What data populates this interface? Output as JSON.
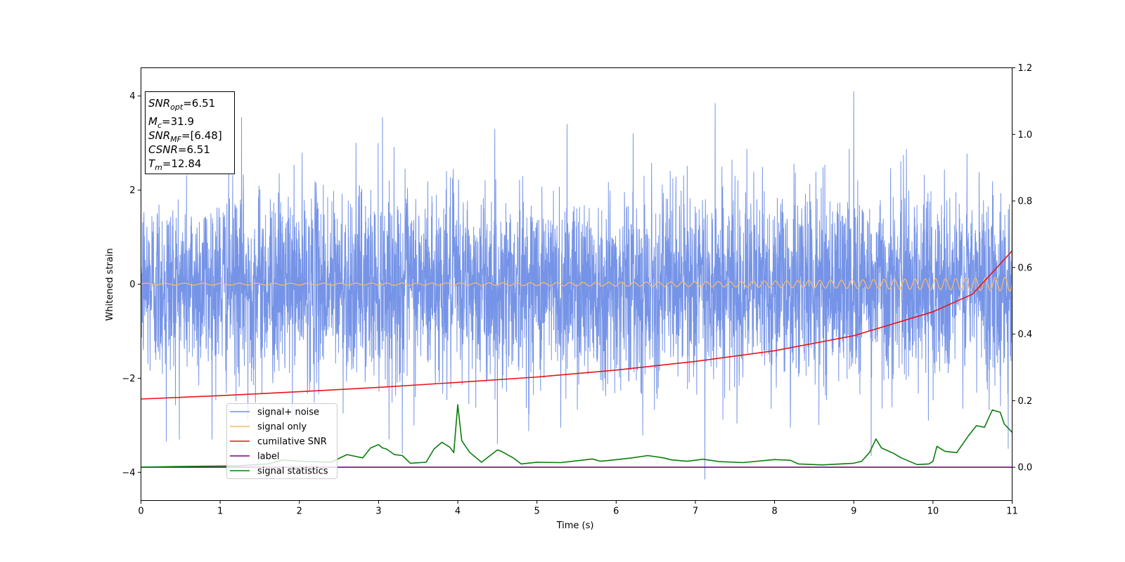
{
  "chart_data": {
    "type": "line",
    "xlabel": "Time (s)",
    "ylabel": "Whitened strain",
    "xlim": [
      0,
      11
    ],
    "ylim": [
      -4.6,
      4.6
    ],
    "ylim_right": [
      -0.1,
      1.2
    ],
    "x_ticks": [
      "0",
      "1",
      "2",
      "3",
      "4",
      "5",
      "6",
      "7",
      "8",
      "9",
      "10",
      "11"
    ],
    "y_ticks_left": [
      "4",
      "2",
      "0",
      "−2",
      "−4"
    ],
    "y_ticks_right": [
      "1.2",
      "1.0",
      "0.8",
      "0.6",
      "0.4",
      "0.2",
      "0.0"
    ],
    "grid": false,
    "legend_position": "lower-left",
    "info_box": {
      "snr_opt": {
        "main": "SNR",
        "sub": "opt",
        "value": "=6.51"
      },
      "mc": {
        "main": "M",
        "sub": "c",
        "value": "=31.9"
      },
      "snr_mf": {
        "main": "SNR",
        "sub": "MF",
        "value": "=[6.48]"
      },
      "csnr": {
        "main": "CSNR",
        "value": "=6.51"
      },
      "tm": {
        "main": "T",
        "sub": "m",
        "value": "=12.84"
      }
    },
    "series": [
      {
        "name": "signal+ noise",
        "color": "#6f8ee6",
        "axis": "left",
        "note": "whitened noise, roughly gaussian, std ~1, occasional peaks to about +/-4",
        "spikes": [
          [
            0.32,
            -3.35
          ],
          [
            1.27,
            3.55
          ],
          [
            1.35,
            -2.9
          ],
          [
            3.05,
            3.55
          ],
          [
            3.3,
            -3.6
          ],
          [
            4.5,
            -3.4
          ],
          [
            5.38,
            3.4
          ],
          [
            7.12,
            -4.15
          ],
          [
            7.25,
            3.85
          ],
          [
            9.0,
            4.1
          ],
          [
            9.22,
            -3.65
          ],
          [
            10.95,
            -3.5
          ],
          [
            11.0,
            3.0
          ],
          [
            5.3,
            -3.05
          ],
          [
            8.2,
            -3.05
          ]
        ]
      },
      {
        "name": "signal only",
        "color": "#f5b971",
        "axis": "left",
        "note": "chirp oscillation around 0, amplitude growing from ~0.02 to ~0.15",
        "amplitude_start": 0.02,
        "amplitude_end": 0.15
      },
      {
        "name": "cumilative SNR",
        "color": "#e8141a",
        "axis": "right",
        "x": [
          0,
          1,
          2,
          3,
          4,
          5,
          6,
          7,
          8,
          9,
          10,
          10.5,
          11
        ],
        "y": [
          0.205,
          0.215,
          0.227,
          0.24,
          0.255,
          0.271,
          0.292,
          0.318,
          0.35,
          0.395,
          0.467,
          0.52,
          0.65
        ]
      },
      {
        "name": "label",
        "color": "#800080",
        "axis": "right",
        "x": [
          0,
          11
        ],
        "y": [
          0.0,
          0.0
        ]
      },
      {
        "name": "signal statistics",
        "color": "#0a7d0a",
        "axis": "right",
        "x": [
          0,
          0.4,
          0.8,
          1.2,
          1.6,
          1.8,
          2.0,
          2.4,
          2.6,
          2.8,
          2.9,
          3.0,
          3.05,
          3.1,
          3.2,
          3.3,
          3.4,
          3.6,
          3.7,
          3.8,
          3.9,
          3.95,
          4.0,
          4.05,
          4.15,
          4.3,
          4.5,
          4.55,
          4.7,
          4.8,
          5.0,
          5.3,
          5.6,
          5.7,
          5.8,
          5.9,
          6.2,
          6.4,
          6.6,
          6.7,
          6.9,
          7.1,
          7.3,
          7.6,
          8.0,
          8.2,
          8.3,
          8.6,
          9.0,
          9.1,
          9.2,
          9.28,
          9.35,
          9.5,
          9.6,
          9.8,
          9.95,
          10.0,
          10.05,
          10.15,
          10.3,
          10.45,
          10.55,
          10.65,
          10.75,
          10.85,
          10.9,
          11.0
        ],
        "y": [
          0.0,
          0.002,
          0.003,
          0.004,
          0.01,
          0.022,
          0.018,
          0.015,
          0.038,
          0.028,
          0.058,
          0.068,
          0.058,
          0.055,
          0.038,
          0.035,
          0.012,
          0.015,
          0.055,
          0.075,
          0.06,
          0.044,
          0.188,
          0.08,
          0.045,
          0.015,
          0.052,
          0.048,
          0.028,
          0.01,
          0.015,
          0.014,
          0.022,
          0.025,
          0.018,
          0.02,
          0.028,
          0.035,
          0.028,
          0.022,
          0.018,
          0.024,
          0.017,
          0.014,
          0.023,
          0.021,
          0.01,
          0.007,
          0.012,
          0.018,
          0.045,
          0.085,
          0.058,
          0.042,
          0.028,
          0.008,
          0.01,
          0.018,
          0.063,
          0.048,
          0.044,
          0.095,
          0.125,
          0.12,
          0.172,
          0.165,
          0.13,
          0.105
        ]
      }
    ]
  }
}
